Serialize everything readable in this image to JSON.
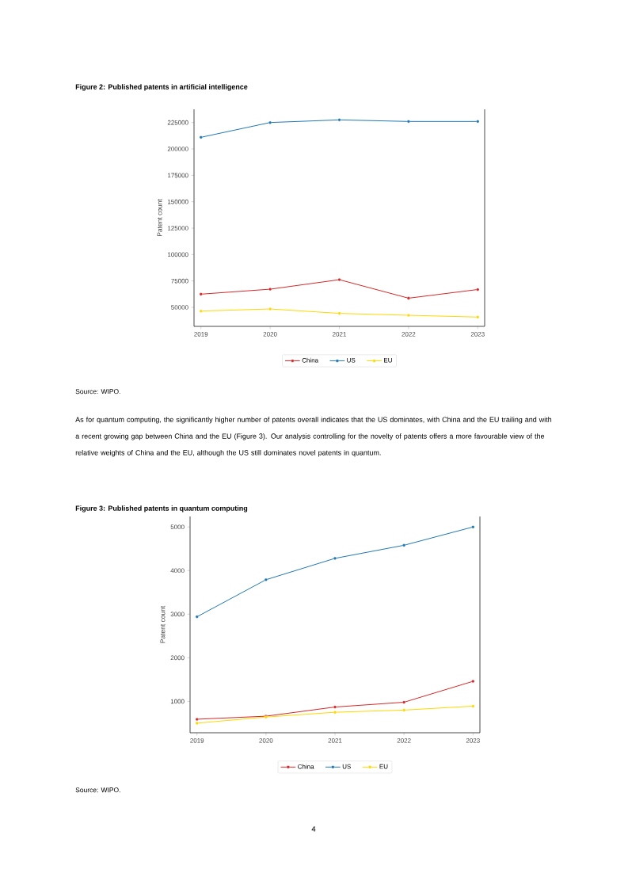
{
  "chart_data": [
    {
      "type": "line",
      "title": "Figure 2: Published patents in artificial intelligence",
      "ylabel": "Patent count",
      "categories": [
        "2019",
        "2020",
        "2021",
        "2022",
        "2023"
      ],
      "series": [
        {
          "name": "China",
          "color": "#d62728",
          "values": [
            62500,
            67200,
            76200,
            58700,
            66900
          ]
        },
        {
          "name": "US",
          "color": "#1f77b4",
          "values": [
            211000,
            225000,
            227500,
            226000,
            226000
          ]
        },
        {
          "name": "EU",
          "color": "#ffd700",
          "values": [
            46500,
            48500,
            44300,
            42500,
            40800
          ]
        }
      ],
      "ylim": [
        32000,
        237500
      ],
      "yticks": [
        50000,
        75000,
        100000,
        125000,
        150000,
        175000,
        200000,
        225000
      ],
      "legend": "bottom",
      "marker": "circle",
      "line_style": "solid",
      "annotations": [
        "Source: WIPO.",
        "As for quantum computing, the significantly higher number of patents overall indicates that the US dominates, with China and the EU trailing and with a recent growing gap between China and the EU (Figure 3). Our analysis controlling for the novelty of patents offers a more favourable view of the relative weights of China and the EU, although the US still dominates novel patents in quantum."
      ]
    },
    {
      "type": "line",
      "title": "Figure 3: Published patents in quantum computing",
      "ylabel": "Patent count",
      "categories": [
        "2019",
        "2020",
        "2021",
        "2022",
        "2023"
      ],
      "series": [
        {
          "name": "China",
          "color": "#d62728",
          "values": [
            590,
            660,
            870,
            980,
            1460
          ]
        },
        {
          "name": "US",
          "color": "#1f77b4",
          "values": [
            2940,
            3790,
            4280,
            4580,
            5000
          ]
        },
        {
          "name": "EU",
          "color": "#ffd700",
          "values": [
            500,
            640,
            750,
            800,
            890
          ]
        }
      ],
      "ylim": [
        280,
        5240
      ],
      "yticks": [
        1000,
        2000,
        3000,
        4000,
        5000
      ],
      "legend": "bottom",
      "marker": "circle",
      "line_style": "solid",
      "annotations": [
        "Source: WIPO.",
        "4"
      ]
    }
  ]
}
